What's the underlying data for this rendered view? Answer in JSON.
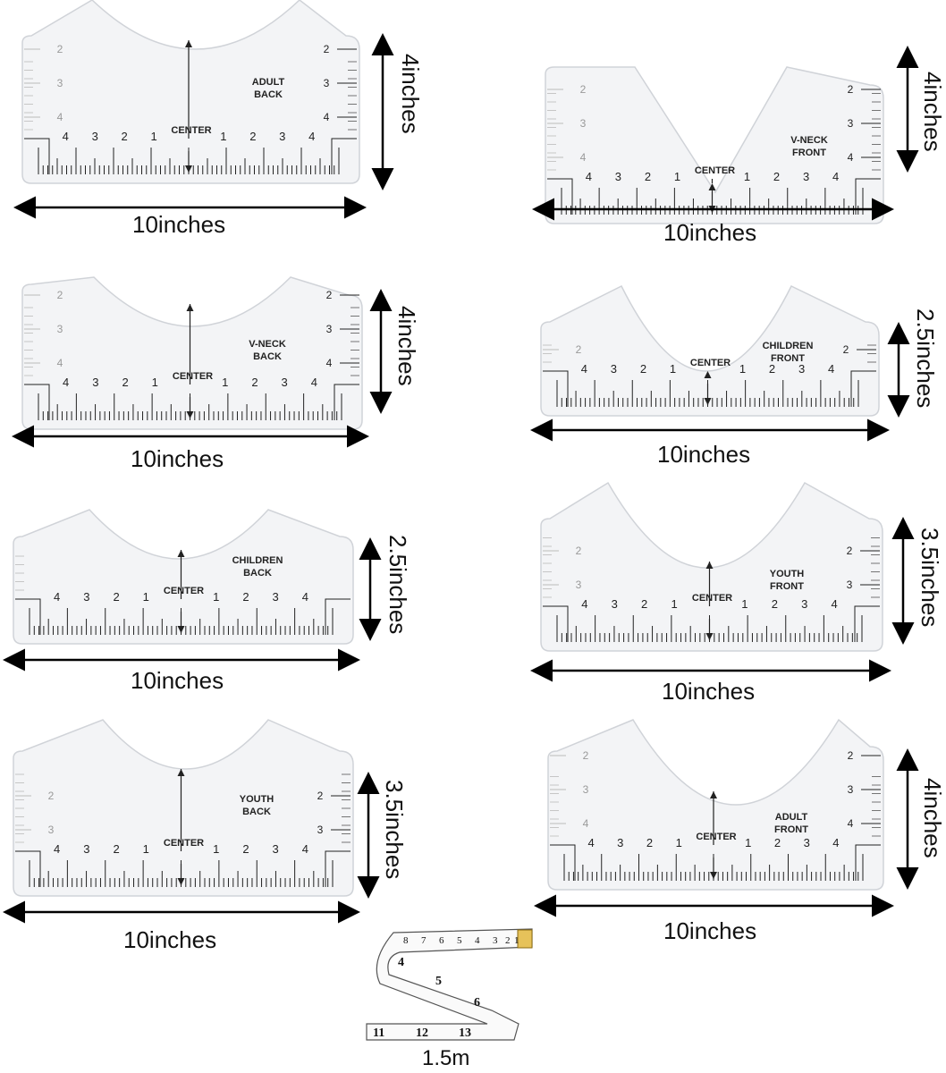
{
  "rulers": [
    {
      "id": "adult-back",
      "label_lines": [
        "ADULT",
        "BACK"
      ],
      "center_label": "CENTER",
      "width_label": "10inches",
      "height_label": "4inches",
      "bottom_numbers": [
        "4",
        "3",
        "2",
        "1",
        "1",
        "2",
        "3",
        "4"
      ],
      "side_numbers": [
        "4",
        "3",
        "2"
      ],
      "neck": "round"
    },
    {
      "id": "v-neck-front",
      "label_lines": [
        "V-NECK",
        "FRONT"
      ],
      "center_label": "CENTER",
      "width_label": "10inches",
      "height_label": "4inches",
      "bottom_numbers": [
        "4",
        "3",
        "2",
        "1",
        "1",
        "2",
        "3",
        "4"
      ],
      "side_numbers": [
        "4",
        "3",
        "2"
      ],
      "neck": "v"
    },
    {
      "id": "v-neck-back",
      "label_lines": [
        "V-NECK",
        "BACK"
      ],
      "center_label": "CENTER",
      "width_label": "10inches",
      "height_label": "4inches",
      "bottom_numbers": [
        "4",
        "3",
        "2",
        "1",
        "1",
        "2",
        "3",
        "4"
      ],
      "side_numbers": [
        "4",
        "3",
        "2"
      ],
      "neck": "round"
    },
    {
      "id": "children-front",
      "label_lines": [
        "CHILDREN",
        "FRONT"
      ],
      "center_label": "CENTER",
      "width_label": "10inches",
      "height_label": "2.5inches",
      "bottom_numbers": [
        "4",
        "3",
        "2",
        "1",
        "1",
        "2",
        "3",
        "4"
      ],
      "side_numbers": [
        "2"
      ],
      "neck": "deep"
    },
    {
      "id": "children-back",
      "label_lines": [
        "CHILDREN",
        "BACK"
      ],
      "center_label": "CENTER",
      "width_label": "10inches",
      "height_label": "2.5inches",
      "bottom_numbers": [
        "4",
        "3",
        "2",
        "1",
        "1",
        "2",
        "3",
        "4"
      ],
      "side_numbers": [],
      "neck": "round"
    },
    {
      "id": "youth-front",
      "label_lines": [
        "YOUTH",
        "FRONT"
      ],
      "center_label": "CENTER",
      "width_label": "10inches",
      "height_label": "3.5inches",
      "bottom_numbers": [
        "4",
        "3",
        "2",
        "1",
        "1",
        "2",
        "3",
        "4"
      ],
      "side_numbers": [
        "3",
        "2"
      ],
      "neck": "deep"
    },
    {
      "id": "youth-back",
      "label_lines": [
        "YOUTH",
        "BACK"
      ],
      "center_label": "CENTER",
      "width_label": "10inches",
      "height_label": "3.5inches",
      "bottom_numbers": [
        "4",
        "3",
        "2",
        "1",
        "1",
        "2",
        "3",
        "4"
      ],
      "side_numbers": [
        "3",
        "2"
      ],
      "neck": "round"
    },
    {
      "id": "adult-front",
      "label_lines": [
        "ADULT",
        "FRONT"
      ],
      "center_label": "CENTER",
      "width_label": "10inches",
      "height_label": "4inches",
      "bottom_numbers": [
        "4",
        "3",
        "2",
        "1",
        "1",
        "2",
        "3",
        "4"
      ],
      "side_numbers": [
        "4",
        "3",
        "2"
      ],
      "neck": "deep"
    }
  ],
  "tape": {
    "label": "1.5m",
    "numbers": [
      "8",
      "7",
      "6",
      "5",
      "4",
      "3",
      "2",
      "1",
      "4",
      "5",
      "6",
      "11",
      "12",
      "13"
    ]
  },
  "colors": {
    "plate_fill": "#f3f4f6",
    "plate_stroke": "#d0d3d8",
    "ink": "#222222"
  }
}
